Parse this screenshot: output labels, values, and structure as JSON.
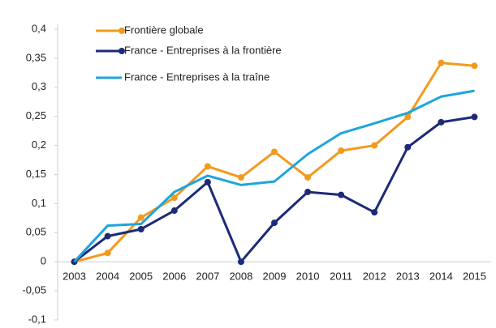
{
  "chart_data": {
    "type": "line",
    "x": [
      "2003",
      "2004",
      "2005",
      "2006",
      "2007",
      "2008",
      "2009",
      "2010",
      "2011",
      "2012",
      "2013",
      "2014",
      "2015"
    ],
    "series": [
      {
        "name": "Frontière globale",
        "color": "#f39a1e",
        "markers": true,
        "values": [
          0,
          0.015,
          0.076,
          0.11,
          0.164,
          0.145,
          0.189,
          0.145,
          0.191,
          0.2,
          0.249,
          0.342,
          0.337
        ]
      },
      {
        "name": "France - Entreprises à la frontière",
        "color": "#1c2a78",
        "markers": true,
        "values": [
          0,
          0.044,
          0.056,
          0.088,
          0.137,
          0,
          0.067,
          0.12,
          0.115,
          0.085,
          0.197,
          0.24,
          0.249
        ]
      },
      {
        "name": "France - Entreprises à la traîne",
        "color": "#1ea5dc",
        "markers": false,
        "values": [
          0,
          0.062,
          0.065,
          0.12,
          0.148,
          0.132,
          0.138,
          0.185,
          0.221,
          0.238,
          0.256,
          0.284,
          0.294
        ]
      }
    ],
    "ylim": [
      -0.1,
      0.4
    ],
    "yticks": [
      {
        "value": 0.4,
        "label": "0,4"
      },
      {
        "value": 0.35,
        "label": "0,35"
      },
      {
        "value": 0.3,
        "label": "0,3"
      },
      {
        "value": 0.25,
        "label": "0,25"
      },
      {
        "value": 0.2,
        "label": "0,2"
      },
      {
        "value": 0.15,
        "label": "0,15"
      },
      {
        "value": 0.1,
        "label": "0,1"
      },
      {
        "value": 0.05,
        "label": "0,05"
      },
      0,
      {
        "value": -0.05,
        "label": "-0,05"
      },
      {
        "value": -0.1,
        "label": "-0,1"
      }
    ],
    "grid": false,
    "legend": "upper left"
  }
}
